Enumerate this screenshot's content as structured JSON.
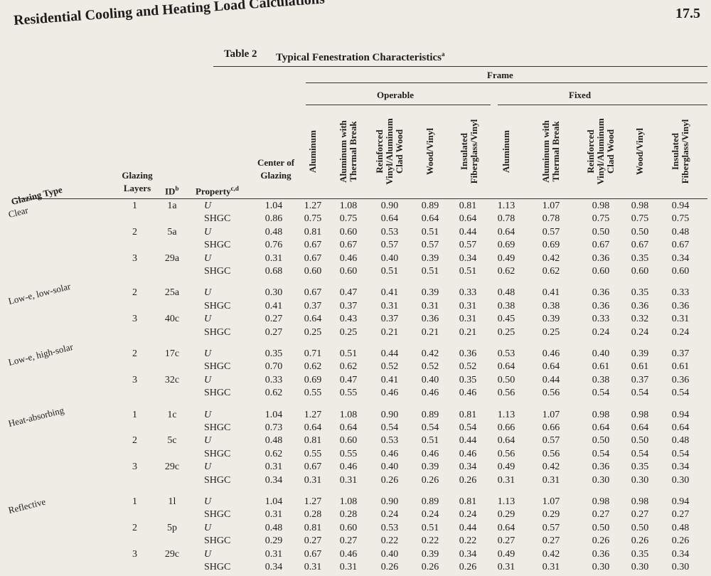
{
  "header": {
    "title": "Residential Cooling and Heating Load Calculations",
    "page_number": "17.5"
  },
  "table": {
    "label": "Table 2",
    "title": "Typical Fenestration Characteristics",
    "title_note": "a",
    "columns": {
      "glazing_type": "Glazing Type",
      "layers": "Glazing Layers",
      "id": {
        "text": "ID",
        "note": "b"
      },
      "property": {
        "text": "Property",
        "note": "c,d"
      },
      "center": "Center of Glazing"
    },
    "frame": {
      "label": "Frame",
      "groups": [
        {
          "label": "Operable",
          "columns": [
            "Aluminum",
            "Aluminum with Thermal Break",
            "Reinforced Vinyl/Aluminum Clad Wood",
            "Wood/Vinyl",
            "Insulated Fiberglass/Vinyl"
          ]
        },
        {
          "label": "Fixed",
          "columns": [
            "Aluminum",
            "Aluminum with Thermal Break",
            "Reinforced Vinyl/Aluminum Clad Wood",
            "Wood/Vinyl",
            "Insulated Fiberglass/Vinyl"
          ]
        }
      ]
    },
    "groups": [
      {
        "type": "Clear",
        "rows": [
          {
            "layers": "1",
            "id": "1a",
            "property": "U",
            "values": [
              "1.04",
              "1.27",
              "1.08",
              "0.90",
              "0.89",
              "0.81",
              "1.13",
              "1.07",
              "0.98",
              "0.98",
              "0.94"
            ]
          },
          {
            "property": "SHGC",
            "values": [
              "0.86",
              "0.75",
              "0.75",
              "0.64",
              "0.64",
              "0.64",
              "0.78",
              "0.78",
              "0.75",
              "0.75",
              "0.75"
            ]
          },
          {
            "layers": "2",
            "id": "5a",
            "property": "U",
            "values": [
              "0.48",
              "0.81",
              "0.60",
              "0.53",
              "0.51",
              "0.44",
              "0.64",
              "0.57",
              "0.50",
              "0.50",
              "0.48"
            ]
          },
          {
            "property": "SHGC",
            "values": [
              "0.76",
              "0.67",
              "0.67",
              "0.57",
              "0.57",
              "0.57",
              "0.69",
              "0.69",
              "0.67",
              "0.67",
              "0.67"
            ]
          },
          {
            "layers": "3",
            "id": "29a",
            "property": "U",
            "values": [
              "0.31",
              "0.67",
              "0.46",
              "0.40",
              "0.39",
              "0.34",
              "0.49",
              "0.42",
              "0.36",
              "0.35",
              "0.34"
            ]
          },
          {
            "property": "SHGC",
            "values": [
              "0.68",
              "0.60",
              "0.60",
              "0.51",
              "0.51",
              "0.51",
              "0.62",
              "0.62",
              "0.60",
              "0.60",
              "0.60"
            ]
          }
        ]
      },
      {
        "type": "Low-e, low-solar",
        "rows": [
          {
            "layers": "2",
            "id": "25a",
            "property": "U",
            "values": [
              "0.30",
              "0.67",
              "0.47",
              "0.41",
              "0.39",
              "0.33",
              "0.48",
              "0.41",
              "0.36",
              "0.35",
              "0.33"
            ]
          },
          {
            "property": "SHGC",
            "values": [
              "0.41",
              "0.37",
              "0.37",
              "0.31",
              "0.31",
              "0.31",
              "0.38",
              "0.38",
              "0.36",
              "0.36",
              "0.36"
            ]
          },
          {
            "layers": "3",
            "id": "40c",
            "property": "U",
            "values": [
              "0.27",
              "0.64",
              "0.43",
              "0.37",
              "0.36",
              "0.31",
              "0.45",
              "0.39",
              "0.33",
              "0.32",
              "0.31"
            ]
          },
          {
            "property": "SHGC",
            "values": [
              "0.27",
              "0.25",
              "0.25",
              "0.21",
              "0.21",
              "0.21",
              "0.25",
              "0.25",
              "0.24",
              "0.24",
              "0.24"
            ]
          }
        ]
      },
      {
        "type": "Low-e, high-solar",
        "rows": [
          {
            "layers": "2",
            "id": "17c",
            "property": "U",
            "values": [
              "0.35",
              "0.71",
              "0.51",
              "0.44",
              "0.42",
              "0.36",
              "0.53",
              "0.46",
              "0.40",
              "0.39",
              "0.37"
            ]
          },
          {
            "property": "SHGC",
            "values": [
              "0.70",
              "0.62",
              "0.62",
              "0.52",
              "0.52",
              "0.52",
              "0.64",
              "0.64",
              "0.61",
              "0.61",
              "0.61"
            ]
          },
          {
            "layers": "3",
            "id": "32c",
            "property": "U",
            "values": [
              "0.33",
              "0.69",
              "0.47",
              "0.41",
              "0.40",
              "0.35",
              "0.50",
              "0.44",
              "0.38",
              "0.37",
              "0.36"
            ]
          },
          {
            "property": "SHGC",
            "values": [
              "0.62",
              "0.55",
              "0.55",
              "0.46",
              "0.46",
              "0.46",
              "0.56",
              "0.56",
              "0.54",
              "0.54",
              "0.54"
            ]
          }
        ]
      },
      {
        "type": "Heat-absorbing",
        "rows": [
          {
            "layers": "1",
            "id": "1c",
            "property": "U",
            "values": [
              "1.04",
              "1.27",
              "1.08",
              "0.90",
              "0.89",
              "0.81",
              "1.13",
              "1.07",
              "0.98",
              "0.98",
              "0.94"
            ]
          },
          {
            "property": "SHGC",
            "values": [
              "0.73",
              "0.64",
              "0.64",
              "0.54",
              "0.54",
              "0.54",
              "0.66",
              "0.66",
              "0.64",
              "0.64",
              "0.64"
            ]
          },
          {
            "layers": "2",
            "id": "5c",
            "property": "U",
            "values": [
              "0.48",
              "0.81",
              "0.60",
              "0.53",
              "0.51",
              "0.44",
              "0.64",
              "0.57",
              "0.50",
              "0.50",
              "0.48"
            ]
          },
          {
            "property": "SHGC",
            "values": [
              "0.62",
              "0.55",
              "0.55",
              "0.46",
              "0.46",
              "0.46",
              "0.56",
              "0.56",
              "0.54",
              "0.54",
              "0.54"
            ]
          },
          {
            "layers": "3",
            "id": "29c",
            "property": "U",
            "values": [
              "0.31",
              "0.67",
              "0.46",
              "0.40",
              "0.39",
              "0.34",
              "0.49",
              "0.42",
              "0.36",
              "0.35",
              "0.34"
            ]
          },
          {
            "property": "SHGC",
            "values": [
              "0.34",
              "0.31",
              "0.31",
              "0.26",
              "0.26",
              "0.26",
              "0.31",
              "0.31",
              "0.30",
              "0.30",
              "0.30"
            ]
          }
        ]
      },
      {
        "type": "Reflective",
        "rows": [
          {
            "layers": "1",
            "id": "1l",
            "property": "U",
            "values": [
              "1.04",
              "1.27",
              "1.08",
              "0.90",
              "0.89",
              "0.81",
              "1.13",
              "1.07",
              "0.98",
              "0.98",
              "0.94"
            ]
          },
          {
            "property": "SHGC",
            "values": [
              "0.31",
              "0.28",
              "0.28",
              "0.24",
              "0.24",
              "0.24",
              "0.29",
              "0.29",
              "0.27",
              "0.27",
              "0.27"
            ]
          },
          {
            "layers": "2",
            "id": "5p",
            "property": "U",
            "values": [
              "0.48",
              "0.81",
              "0.60",
              "0.53",
              "0.51",
              "0.44",
              "0.64",
              "0.57",
              "0.50",
              "0.50",
              "0.48"
            ]
          },
          {
            "property": "SHGC",
            "values": [
              "0.29",
              "0.27",
              "0.27",
              "0.22",
              "0.22",
              "0.22",
              "0.27",
              "0.27",
              "0.26",
              "0.26",
              "0.26"
            ]
          },
          {
            "layers": "3",
            "id": "29c",
            "property": "U",
            "values": [
              "0.31",
              "0.67",
              "0.46",
              "0.40",
              "0.39",
              "0.34",
              "0.49",
              "0.42",
              "0.36",
              "0.35",
              "0.34"
            ]
          },
          {
            "property": "SHGC",
            "values": [
              "0.34",
              "0.31",
              "0.31",
              "0.26",
              "0.26",
              "0.26",
              "0.31",
              "0.31",
              "0.30",
              "0.30",
              "0.30"
            ]
          }
        ]
      }
    ]
  }
}
